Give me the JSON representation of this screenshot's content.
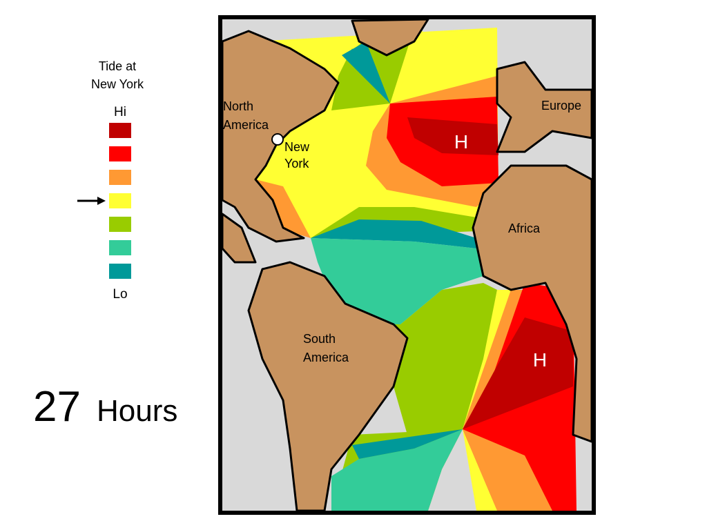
{
  "legend": {
    "title": [
      "Tide at",
      "New York"
    ],
    "hi": "Hi",
    "lo": "Lo",
    "colors": [
      "#c00000",
      "#ff0000",
      "#ff9933",
      "#ffff33",
      "#99cc00",
      "#33cc99",
      "#009999"
    ]
  },
  "map_labels": {
    "north_america": [
      "North",
      "America"
    ],
    "new_york": [
      "New",
      "York"
    ],
    "europe": "Europe",
    "africa": "Africa",
    "south_america": [
      "South",
      "America"
    ],
    "high_north": "H",
    "high_south": "H"
  },
  "time": {
    "number": "27",
    "unit": "Hours"
  }
}
